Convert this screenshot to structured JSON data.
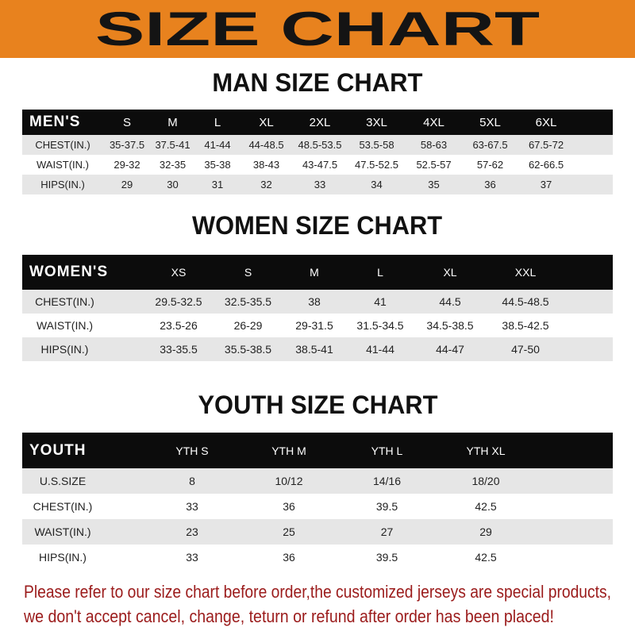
{
  "banner_title": "SIZE CHART",
  "men": {
    "title": "MAN SIZE CHART",
    "header": [
      "MEN'S",
      "S",
      "M",
      "L",
      "XL",
      "2XL",
      "3XL",
      "4XL",
      "5XL",
      "6XL"
    ],
    "rows": [
      [
        "CHEST(IN.)",
        "35-37.5",
        "37.5-41",
        "41-44",
        "44-48.5",
        "48.5-53.5",
        "53.5-58",
        "58-63",
        "63-67.5",
        "67.5-72"
      ],
      [
        "WAIST(IN.)",
        "29-32",
        "32-35",
        "35-38",
        "38-43",
        "43-47.5",
        "47.5-52.5",
        "52.5-57",
        "57-62",
        "62-66.5"
      ],
      [
        "HIPS(IN.)",
        "29",
        "30",
        "31",
        "32",
        "33",
        "34",
        "35",
        "36",
        "37"
      ]
    ]
  },
  "women": {
    "title": "WOMEN SIZE CHART",
    "header": [
      "WOMEN'S",
      "XS",
      "S",
      "M",
      "L",
      "XL",
      "XXL"
    ],
    "rows": [
      [
        "CHEST(IN.)",
        "29.5-32.5",
        "32.5-35.5",
        "38",
        "41",
        "44.5",
        "44.5-48.5"
      ],
      [
        "WAIST(IN.)",
        "23.5-26",
        "26-29",
        "29-31.5",
        "31.5-34.5",
        "34.5-38.5",
        "38.5-42.5"
      ],
      [
        "HIPS(IN.)",
        "33-35.5",
        "35.5-38.5",
        "38.5-41",
        "41-44",
        "44-47",
        "47-50"
      ]
    ]
  },
  "youth": {
    "title": "YOUTH SIZE CHART",
    "header": [
      "YOUTH",
      "YTH S",
      "YTH M",
      "YTH L",
      "YTH XL"
    ],
    "rows": [
      [
        "U.S.SIZE",
        "8",
        "10/12",
        "14/16",
        "18/20"
      ],
      [
        "CHEST(IN.)",
        "33",
        "36",
        "39.5",
        "42.5"
      ],
      [
        "WAIST(IN.)",
        "23",
        "25",
        "27",
        "29"
      ],
      [
        "HIPS(IN.)",
        "33",
        "36",
        "39.5",
        "42.5"
      ]
    ]
  },
  "note": {
    "line1": "Please refer to our size chart before order,the customized jerseys are special products,",
    "line2": "we don't accept cancel, change, teturn or refund after order has been placed!"
  },
  "colors": {
    "banner": "#E8821E",
    "header_row": "#0c0c0c",
    "stripe": "#e6e6e6",
    "note": "#9B1B1B"
  }
}
